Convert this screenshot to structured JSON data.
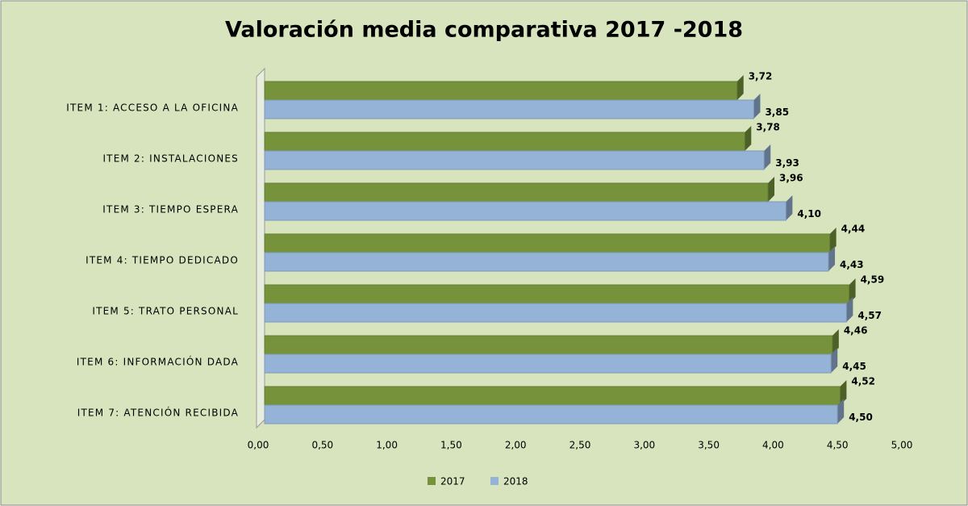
{
  "chart_data": {
    "type": "hbar",
    "title": "Valoración media comparativa 2017 -2018",
    "categories": [
      "ITEM 1: ACCESO A LA OFICINA",
      "ITEM 2: INSTALACIONES",
      "ITEM 3: TIEMPO ESPERA",
      "ITEM 4: TIEMPO DEDICADO",
      "ITEM 5: TRATO PERSONAL",
      "ITEM 6: INFORMACIÓN DADA",
      "ITEM 7: ATENCIÓN RECIBIDA"
    ],
    "series": [
      {
        "name": "2017",
        "color": "#76933c",
        "values": [
          3.72,
          3.78,
          3.96,
          4.44,
          4.59,
          4.46,
          4.52
        ],
        "value_labels": [
          "3,72",
          "3,78",
          "3,96",
          "4,44",
          "4,59",
          "4,46",
          "4,52"
        ]
      },
      {
        "name": "2018",
        "color": "#95b3d7",
        "values": [
          3.85,
          3.93,
          4.1,
          4.43,
          4.57,
          4.45,
          4.5
        ],
        "value_labels": [
          "3,85",
          "3,93",
          "4,10",
          "4,43",
          "4,57",
          "4,45",
          "4,50"
        ]
      }
    ],
    "xlim": [
      0,
      5
    ],
    "xticks": [
      {
        "value": 0,
        "label": "0,00"
      },
      {
        "value": 0.5,
        "label": "0,50"
      },
      {
        "value": 1,
        "label": "1,00"
      },
      {
        "value": 1.5,
        "label": "1,50"
      },
      {
        "value": 2,
        "label": "2,00"
      },
      {
        "value": 2.5,
        "label": "2,50"
      },
      {
        "value": 3,
        "label": "3,00"
      },
      {
        "value": 3.5,
        "label": "3,50"
      },
      {
        "value": 4,
        "label": "4,00"
      },
      {
        "value": 4.5,
        "label": "4,50"
      },
      {
        "value": 5,
        "label": "5,00"
      }
    ],
    "legend": "bottom"
  }
}
